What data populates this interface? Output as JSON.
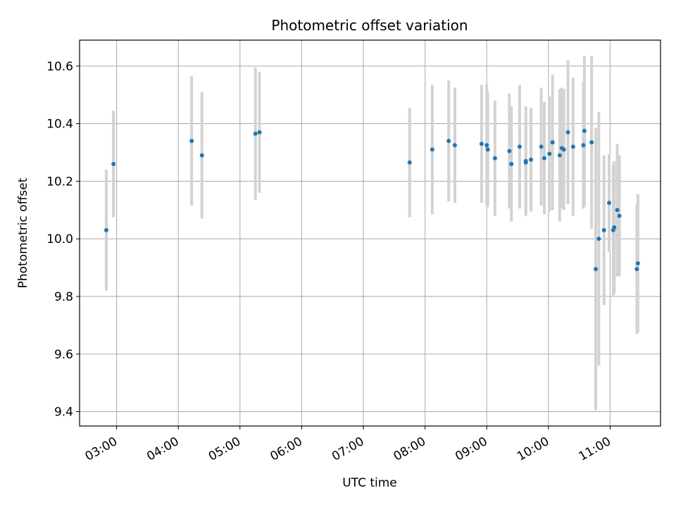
{
  "chart_data": {
    "type": "scatter",
    "title": "Photometric offset variation",
    "xlabel": "UTC time",
    "ylabel": "Photometric offset",
    "grid": true,
    "x_ticks": [
      "03:00",
      "04:00",
      "05:00",
      "06:00",
      "07:00",
      "08:00",
      "09:00",
      "10:00",
      "11:00"
    ],
    "y_ticks": [
      "9.4",
      "9.6",
      "9.8",
      "10.0",
      "10.2",
      "10.4",
      "10.6"
    ],
    "xlim": [
      "02:24",
      "11:49"
    ],
    "ylim": [
      9.35,
      10.69
    ],
    "colors": {
      "point": "#1f77b4",
      "errorbar": "#d3d3d3",
      "grid": "#b0b0b0"
    },
    "series": [
      {
        "x": [
          "02:50",
          "02:57",
          "04:13",
          "04:23",
          "05:15",
          "05:19",
          "07:45",
          "08:07",
          "08:23",
          "08:29",
          "08:55",
          "09:00",
          "09:01",
          "09:08",
          "09:22",
          "09:24",
          "09:32",
          "09:38",
          "09:38",
          "09:43",
          "09:53",
          "09:56",
          "10:01",
          "10:04",
          "10:11",
          "10:13",
          "10:15",
          "10:19",
          "10:24",
          "10:34",
          "10:35",
          "10:42",
          "10:46",
          "10:49",
          "10:54",
          "10:59",
          "11:03",
          "11:04",
          "11:07",
          "11:09",
          "11:26",
          "11:27"
        ],
        "y": [
          10.03,
          10.26,
          10.34,
          10.29,
          10.365,
          10.37,
          10.265,
          10.31,
          10.34,
          10.325,
          10.33,
          10.325,
          10.31,
          10.28,
          10.305,
          10.26,
          10.32,
          10.265,
          10.27,
          10.275,
          10.32,
          10.28,
          10.295,
          10.335,
          10.29,
          10.315,
          10.31,
          10.37,
          10.32,
          10.325,
          10.375,
          10.335,
          9.895,
          10.0,
          10.03,
          10.125,
          10.03,
          10.04,
          10.1,
          10.08,
          9.895,
          9.915
        ],
        "yerr": [
          0.21,
          0.185,
          0.225,
          0.22,
          0.23,
          0.21,
          0.19,
          0.225,
          0.21,
          0.2,
          0.205,
          0.21,
          0.2,
          0.2,
          0.2,
          0.2,
          0.215,
          0.17,
          0.19,
          0.18,
          0.205,
          0.195,
          0.2,
          0.235,
          0.23,
          0.21,
          0.21,
          0.25,
          0.24,
          0.22,
          0.26,
          0.3,
          0.49,
          0.44,
          0.26,
          0.17,
          0.23,
          0.23,
          0.23,
          0.21,
          0.225,
          0.24
        ]
      }
    ]
  }
}
